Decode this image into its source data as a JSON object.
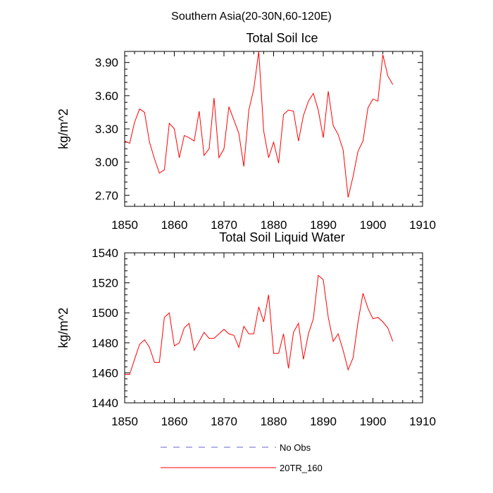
{
  "main_title": "Southern Asia(20-30N,60-120E)",
  "legend": [
    {
      "label": "No Obs",
      "color": "#6666cc",
      "dash": "dashed"
    },
    {
      "label": "20TR_160",
      "color": "#ff0000",
      "dash": "solid"
    }
  ],
  "chart_data": [
    {
      "type": "line",
      "title": "Total Soil Ice",
      "xlabel": "",
      "ylabel": "kg/m^2",
      "xlim": [
        1850,
        1910
      ],
      "ylim": [
        2.6,
        4.0
      ],
      "x_ticks": [
        1850,
        1860,
        1870,
        1880,
        1890,
        1900,
        1910
      ],
      "y_ticks": [
        2.7,
        3.0,
        3.3,
        3.6,
        3.9
      ],
      "y_tick_labels": [
        "2.70",
        "3.00",
        "3.30",
        "3.60",
        "3.90"
      ],
      "grid": false,
      "series": [
        {
          "name": "20TR_160",
          "color": "#ff0000",
          "x": [
            1850,
            1851,
            1852,
            1853,
            1854,
            1855,
            1856,
            1857,
            1858,
            1859,
            1860,
            1861,
            1862,
            1863,
            1864,
            1865,
            1866,
            1867,
            1868,
            1869,
            1870,
            1871,
            1872,
            1873,
            1874,
            1875,
            1876,
            1877,
            1878,
            1879,
            1880,
            1881,
            1882,
            1883,
            1884,
            1885,
            1886,
            1887,
            1888,
            1889,
            1890,
            1891,
            1892,
            1893,
            1894,
            1895,
            1896,
            1897,
            1898,
            1899,
            1900,
            1901,
            1902,
            1903,
            1904
          ],
          "values": [
            3.19,
            3.17,
            3.36,
            3.48,
            3.45,
            3.18,
            3.03,
            2.9,
            2.93,
            3.35,
            3.3,
            3.04,
            3.24,
            3.22,
            3.19,
            3.46,
            3.06,
            3.12,
            3.58,
            3.04,
            3.12,
            3.5,
            3.38,
            3.26,
            2.96,
            3.47,
            3.66,
            4.0,
            3.28,
            3.04,
            3.18,
            2.99,
            3.43,
            3.47,
            3.46,
            3.19,
            3.42,
            3.55,
            3.62,
            3.47,
            3.22,
            3.64,
            3.33,
            3.25,
            3.11,
            2.68,
            2.87,
            3.1,
            3.19,
            3.49,
            3.57,
            3.55,
            3.97,
            3.78,
            3.7
          ]
        }
      ]
    },
    {
      "type": "line",
      "title": "Total Soil Liquid Water",
      "xlabel": "",
      "ylabel": "kg/m^2",
      "xlim": [
        1850,
        1910
      ],
      "ylim": [
        1440,
        1540
      ],
      "x_ticks": [
        1850,
        1860,
        1870,
        1880,
        1890,
        1900,
        1910
      ],
      "y_ticks": [
        1440,
        1460,
        1480,
        1500,
        1520,
        1540
      ],
      "y_tick_labels": [
        "1440",
        "1460",
        "1480",
        "1500",
        "1520",
        "1540"
      ],
      "grid": false,
      "series": [
        {
          "name": "20TR_160",
          "color": "#ff0000",
          "x": [
            1850,
            1851,
            1852,
            1853,
            1854,
            1855,
            1856,
            1857,
            1858,
            1859,
            1860,
            1861,
            1862,
            1863,
            1864,
            1865,
            1866,
            1867,
            1868,
            1869,
            1870,
            1871,
            1872,
            1873,
            1874,
            1875,
            1876,
            1877,
            1878,
            1879,
            1880,
            1881,
            1882,
            1883,
            1884,
            1885,
            1886,
            1887,
            1888,
            1889,
            1890,
            1891,
            1892,
            1893,
            1894,
            1895,
            1896,
            1897,
            1898,
            1899,
            1900,
            1901,
            1902,
            1903,
            1904
          ],
          "values": [
            1459,
            1459,
            1469,
            1479,
            1482,
            1477,
            1467,
            1467,
            1497,
            1500,
            1478,
            1480,
            1490,
            1493,
            1475,
            1481,
            1487,
            1483,
            1483,
            1486,
            1489,
            1486,
            1485,
            1477,
            1491,
            1486,
            1486,
            1504,
            1494,
            1512,
            1473,
            1473,
            1486,
            1463,
            1487,
            1493,
            1469,
            1486,
            1496,
            1525,
            1522,
            1497,
            1481,
            1486,
            1475,
            1462,
            1470,
            1494,
            1513,
            1503,
            1496,
            1497,
            1494,
            1490,
            1481
          ]
        }
      ]
    }
  ]
}
